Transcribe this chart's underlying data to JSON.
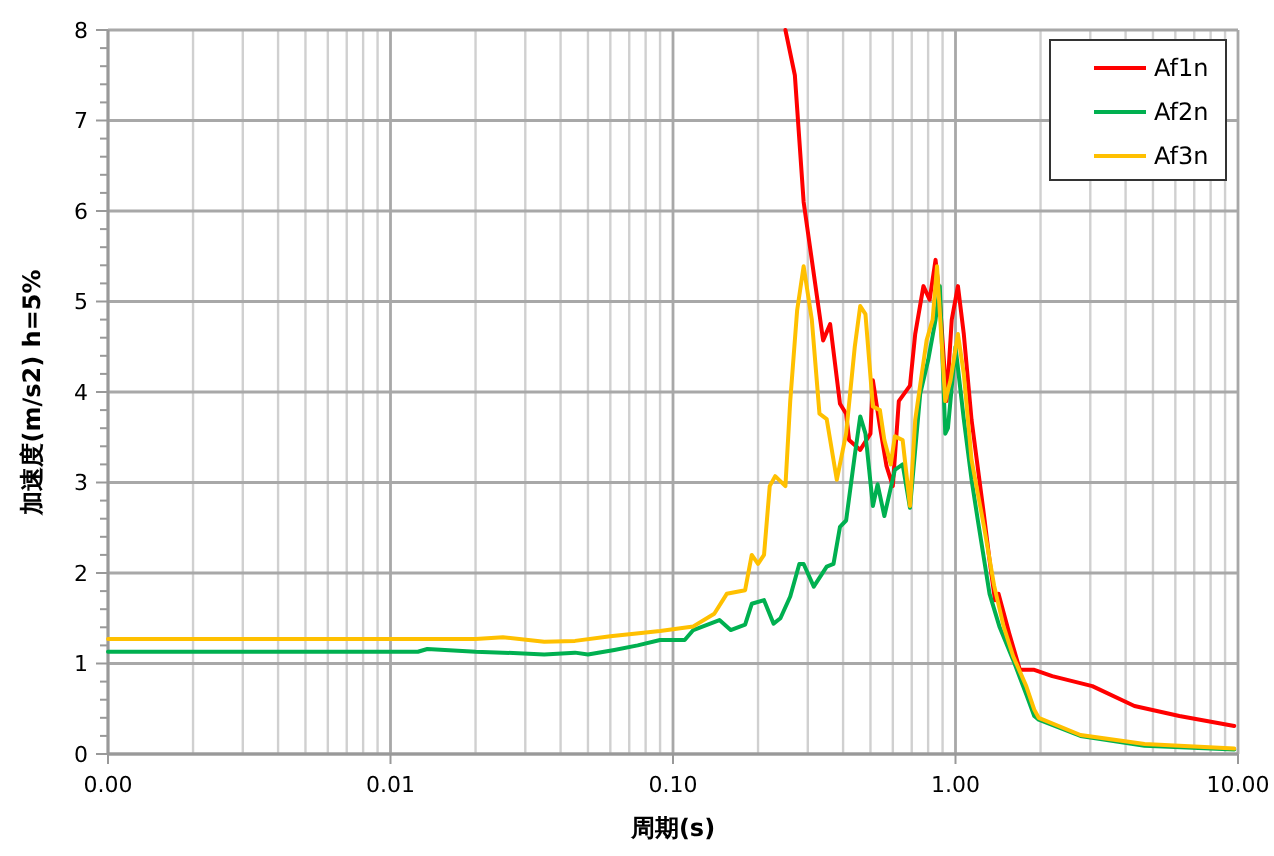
{
  "chart_data": {
    "type": "line",
    "xlabel": "周期(s)",
    "ylabel": "加速度(m/s2) h=5%",
    "log": "x",
    "grid": true,
    "legend": "top right",
    "line_style": "solid",
    "xlim": [
      0.001,
      10
    ],
    "ylim": [
      0,
      8
    ],
    "xticks": [
      {
        "value": 0.001,
        "label": "0.00"
      },
      {
        "value": 0.01,
        "label": "0.01"
      },
      {
        "value": 0.1,
        "label": "0.10"
      },
      {
        "value": 1,
        "label": "1.00"
      },
      {
        "value": 10,
        "label": "10.00"
      }
    ],
    "yticks": [
      0,
      1,
      2,
      3,
      4,
      5,
      6,
      7,
      8
    ],
    "series": [
      {
        "name": "Af1n",
        "color": "#ff0000",
        "x": [
          0.25,
          0.27,
          0.29,
          0.33,
          0.34,
          0.36,
          0.39,
          0.41,
          0.42,
          0.46,
          0.5,
          0.51,
          0.54,
          0.57,
          0.6,
          0.63,
          0.69,
          0.72,
          0.77,
          0.81,
          0.85,
          0.88,
          0.93,
          0.97,
          1.02,
          1.07,
          1.14,
          1.26,
          1.32,
          1.38,
          1.42,
          1.55,
          1.69,
          1.9,
          2.2,
          3.05,
          4.3,
          6.2,
          9.7
        ],
        "values": [
          8.0,
          7.5,
          6.1,
          4.86,
          4.57,
          4.75,
          3.87,
          3.76,
          3.47,
          3.36,
          3.54,
          4.13,
          3.62,
          3.18,
          2.96,
          3.9,
          4.07,
          4.64,
          5.17,
          5.02,
          5.46,
          5.02,
          3.9,
          4.8,
          5.17,
          4.64,
          3.69,
          2.65,
          2.14,
          1.7,
          1.77,
          1.33,
          0.93,
          0.93,
          0.86,
          0.75,
          0.53,
          0.42,
          0.31
        ]
      },
      {
        "name": "Af2n",
        "color": "#00b050",
        "x": [
          0.001,
          0.0125,
          0.0135,
          0.02,
          0.025,
          0.035,
          0.045,
          0.05,
          0.062,
          0.075,
          0.09,
          0.11,
          0.118,
          0.146,
          0.16,
          0.18,
          0.19,
          0.21,
          0.227,
          0.24,
          0.26,
          0.28,
          0.29,
          0.315,
          0.35,
          0.37,
          0.39,
          0.41,
          0.44,
          0.46,
          0.48,
          0.51,
          0.53,
          0.56,
          0.61,
          0.65,
          0.69,
          0.75,
          0.8,
          0.85,
          0.88,
          0.92,
          0.94,
          1.0,
          1.07,
          1.14,
          1.2,
          1.32,
          1.43,
          1.6,
          1.78,
          1.9,
          1.97,
          2.77,
          4.67,
          9.7
        ],
        "values": [
          1.13,
          1.13,
          1.16,
          1.13,
          1.12,
          1.1,
          1.12,
          1.1,
          1.15,
          1.2,
          1.26,
          1.26,
          1.37,
          1.48,
          1.37,
          1.43,
          1.66,
          1.7,
          1.44,
          1.5,
          1.74,
          2.1,
          2.1,
          1.85,
          2.07,
          2.1,
          2.51,
          2.58,
          3.3,
          3.73,
          3.54,
          2.74,
          2.98,
          2.63,
          3.14,
          3.2,
          2.72,
          3.98,
          4.35,
          4.8,
          5.17,
          3.54,
          3.6,
          4.5,
          3.7,
          3.03,
          2.58,
          1.77,
          1.41,
          1.04,
          0.66,
          0.42,
          0.38,
          0.2,
          0.09,
          0.05
        ]
      },
      {
        "name": "Af3n",
        "color": "#ffc000",
        "x": [
          0.001,
          0.02,
          0.025,
          0.035,
          0.045,
          0.06,
          0.09,
          0.118,
          0.14,
          0.155,
          0.18,
          0.19,
          0.2,
          0.21,
          0.22,
          0.23,
          0.25,
          0.26,
          0.275,
          0.29,
          0.31,
          0.33,
          0.35,
          0.38,
          0.41,
          0.44,
          0.46,
          0.48,
          0.51,
          0.54,
          0.56,
          0.59,
          0.61,
          0.65,
          0.69,
          0.72,
          0.79,
          0.83,
          0.86,
          0.92,
          0.96,
          1.02,
          1.07,
          1.14,
          1.26,
          1.37,
          1.48,
          1.6,
          1.78,
          1.9,
          1.97,
          2.77,
          4.67,
          9.7
        ],
        "values": [
          1.27,
          1.27,
          1.29,
          1.24,
          1.25,
          1.3,
          1.36,
          1.41,
          1.55,
          1.77,
          1.81,
          2.2,
          2.1,
          2.2,
          2.96,
          3.07,
          2.96,
          3.9,
          4.9,
          5.39,
          4.8,
          3.76,
          3.7,
          3.03,
          3.54,
          4.5,
          4.95,
          4.86,
          3.84,
          3.8,
          3.47,
          3.2,
          3.51,
          3.47,
          2.74,
          3.69,
          4.57,
          4.8,
          5.39,
          3.9,
          4.13,
          4.64,
          4.2,
          3.25,
          2.52,
          1.86,
          1.41,
          1.08,
          0.75,
          0.49,
          0.4,
          0.21,
          0.11,
          0.06
        ]
      }
    ]
  }
}
